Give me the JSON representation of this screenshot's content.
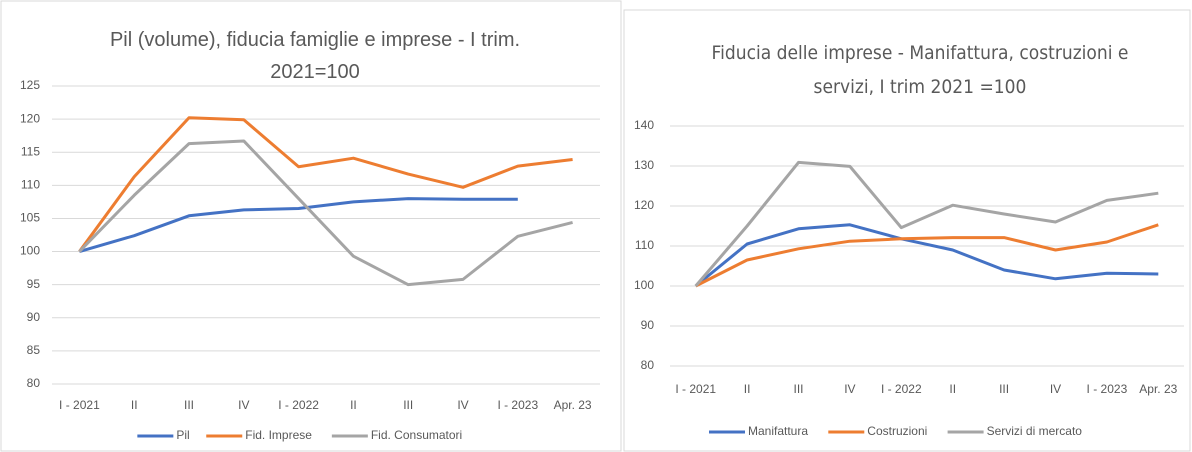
{
  "chart_data": [
    {
      "type": "line",
      "title": "Pil (volume), fiducia famiglie e imprese - I trim. 2021=100",
      "categories": [
        "I - 2021",
        "II",
        "III",
        "IV",
        "I - 2022",
        "II",
        "III",
        "IV",
        "I - 2023",
        "Apr. 23"
      ],
      "series": [
        {
          "name": "Pil",
          "color": "#4472c4",
          "values": [
            100,
            102.4,
            105.4,
            106.3,
            106.5,
            107.5,
            108,
            107.9,
            107.9,
            null
          ]
        },
        {
          "name": "Fid. Imprese",
          "color": "#ed7d31",
          "values": [
            100,
            111.3,
            120.2,
            119.9,
            112.8,
            114.1,
            111.7,
            109.7,
            112.9,
            113.9
          ]
        },
        {
          "name": "Fid. Consumatori",
          "color": "#a5a5a5",
          "values": [
            100,
            108.5,
            116.3,
            116.7,
            108,
            99.3,
            95,
            95.8,
            102.3,
            104.4
          ]
        }
      ],
      "ylim": [
        80,
        125
      ],
      "yticks": [
        80,
        85,
        90,
        95,
        100,
        105,
        110,
        115,
        120,
        125
      ],
      "legend": "bottom"
    },
    {
      "type": "line",
      "title": "Fiducia delle imprese - Manifattura, costruzioni e servizi, I trim 2021 =100",
      "categories": [
        "I - 2021",
        "II",
        "III",
        "IV",
        "I - 2022",
        "II",
        "III",
        "IV",
        "I - 2023",
        "Apr. 23"
      ],
      "series": [
        {
          "name": "Manifattura",
          "color": "#4472c4",
          "values": [
            100,
            110.5,
            114.3,
            115.3,
            111.8,
            109,
            104,
            101.8,
            103.2,
            103
          ]
        },
        {
          "name": "Costruzioni",
          "color": "#ed7d31",
          "values": [
            100,
            106.5,
            109.3,
            111.2,
            111.8,
            112.1,
            112.1,
            109,
            111,
            115.3
          ]
        },
        {
          "name": "Servizi di mercato",
          "color": "#a5a5a5",
          "values": [
            100,
            115,
            130.9,
            129.9,
            114.6,
            120.2,
            118,
            116,
            121.4,
            123.2
          ]
        }
      ],
      "ylim": [
        80,
        140
      ],
      "yticks": [
        80,
        90,
        100,
        110,
        120,
        130,
        140
      ],
      "legend": "bottom"
    }
  ]
}
